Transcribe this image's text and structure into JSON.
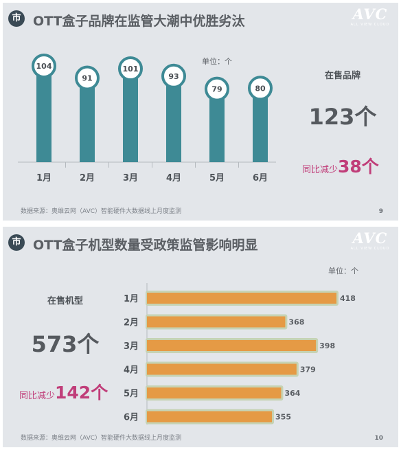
{
  "slide1": {
    "badge": "市",
    "title": "OTT盒子品牌在监管大潮中优胜劣汰",
    "logo": "AVC",
    "logo_sub": "ALL VIEW CLOUD",
    "unit": "单位：个",
    "stat_label": "在售品牌",
    "stat_value": "123个",
    "yoy_label": "同比减少",
    "yoy_value": "38个",
    "source": "数据来源：奥维云网（AVC）智能硬件大数据线上月度监测",
    "page": "9",
    "colors": {
      "bar": "#3e8a95",
      "bubble_ring": "#3e8a95",
      "accent": "#c03d79"
    }
  },
  "slide2": {
    "badge": "市",
    "title": "OTT盒子机型数量受政策监管影响明显",
    "logo": "AVC",
    "logo_sub": "ALL VIEW CLOUD",
    "unit": "单位：个",
    "stat_label": "在售机型",
    "stat_value": "573个",
    "yoy_label": "同比减少",
    "yoy_value": "142个",
    "source": "数据来源：奥维云网（AVC）智能硬件大数据线上月度监测",
    "page": "10",
    "colors": {
      "bar": "#e59a45",
      "glow": "#c6d3b4",
      "accent": "#c03d79"
    }
  },
  "chart_data": [
    {
      "type": "bar",
      "orientation": "vertical",
      "categories": [
        "1月",
        "2月",
        "3月",
        "4月",
        "5月",
        "6月"
      ],
      "values": [
        104,
        91,
        101,
        93,
        79,
        80
      ]
    },
    {
      "type": "bar",
      "orientation": "horizontal",
      "categories": [
        "1月",
        "2月",
        "3月",
        "4月",
        "5月",
        "6月"
      ],
      "values": [
        418,
        368,
        398,
        379,
        364,
        355
      ]
    }
  ]
}
